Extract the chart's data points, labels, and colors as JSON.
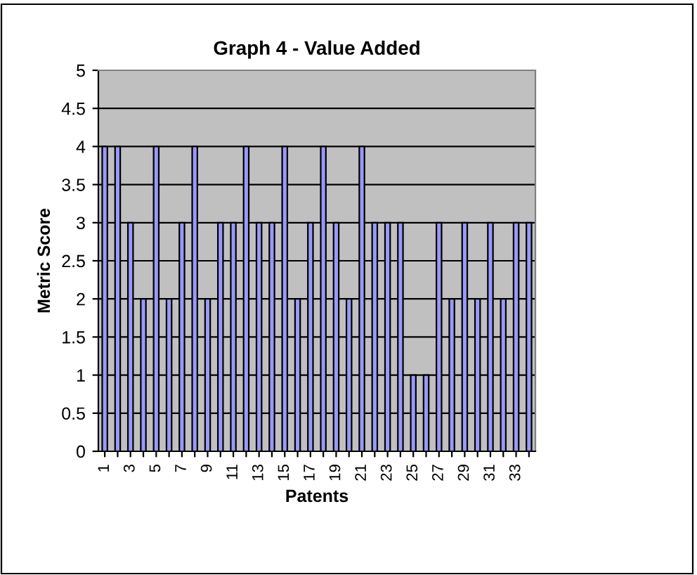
{
  "chart_data": {
    "type": "bar",
    "title": "Graph 4 - Value Added",
    "xlabel": "Patents",
    "ylabel": "Metric Score",
    "categories": [
      "1",
      null,
      "3",
      null,
      "5",
      null,
      "7",
      null,
      "9",
      null,
      "11",
      null,
      "13",
      null,
      "15",
      null,
      "17",
      null,
      "19",
      null,
      "21",
      null,
      "23",
      null,
      "25",
      null,
      "27",
      null,
      "29",
      null,
      "31",
      null,
      "33",
      null
    ],
    "values": [
      4,
      4,
      3,
      2,
      4,
      2,
      3,
      4,
      2,
      3,
      3,
      4,
      3,
      3,
      4,
      2,
      3,
      4,
      3,
      2,
      4,
      3,
      3,
      3,
      1,
      1,
      3,
      2,
      3,
      2,
      3,
      2,
      3,
      3
    ],
    "color": "#9999ff",
    "ylim": [
      0,
      5
    ],
    "yticks": [
      0,
      0.5,
      1,
      1.5,
      2,
      2.5,
      3,
      3.5,
      4,
      4.5,
      5
    ],
    "grid": "y",
    "legend": false
  }
}
